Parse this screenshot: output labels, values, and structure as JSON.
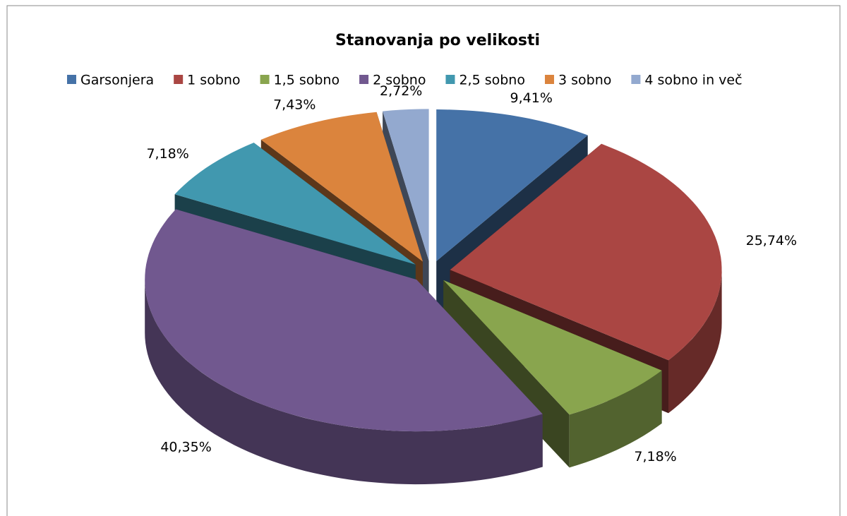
{
  "chart_data": {
    "type": "pie3d",
    "title": "Stanovanja po velikosti",
    "categories": [
      "Garsonjera",
      "1 sobno",
      "1,5 sobno",
      "2 sobno",
      "2,5 sobno",
      "3 sobno",
      "4 sobno in več"
    ],
    "values": [
      9.41,
      25.74,
      7.18,
      40.35,
      7.18,
      7.43,
      2.72
    ],
    "value_labels": [
      "9,41%",
      "25,74%",
      "7,18%",
      "40,35%",
      "7,18%",
      "7,43%",
      "2,72%"
    ],
    "colors": [
      "#4572a7",
      "#aa4643",
      "#89a54e",
      "#71588f",
      "#4198af",
      "#db843d",
      "#93a9cf"
    ],
    "legend": "top"
  }
}
